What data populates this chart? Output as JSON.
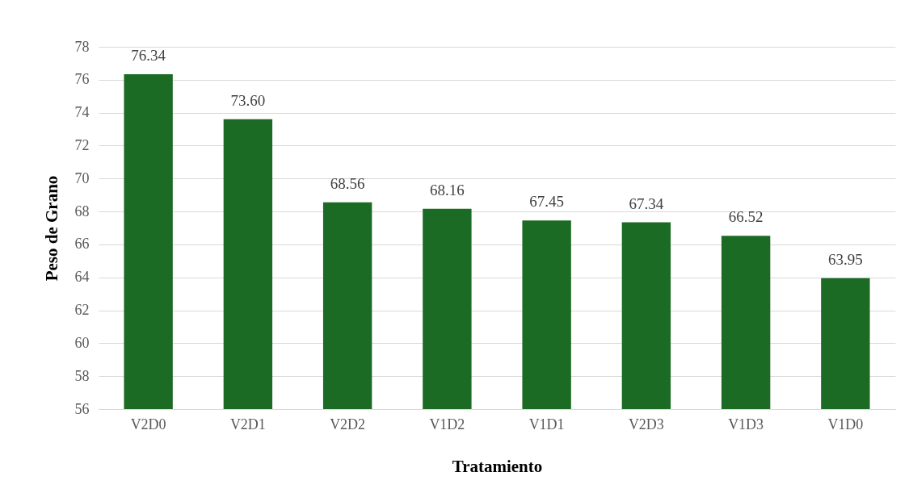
{
  "chart_data": {
    "type": "bar",
    "xlabel": "Tratamiento",
    "ylabel": "Peso de Grano",
    "categories": [
      "V2D0",
      "V2D1",
      "V2D2",
      "V1D2",
      "V1D1",
      "V2D3",
      "V1D3",
      "V1D0"
    ],
    "values": [
      76.34,
      73.6,
      68.56,
      68.16,
      67.45,
      67.34,
      66.52,
      63.95
    ],
    "value_labels": [
      "76.34",
      "73.60",
      "68.56",
      "68.16",
      "67.45",
      "67.34",
      "66.52",
      "63.95"
    ],
    "color": "#1b6b24",
    "ylim": [
      56,
      78
    ],
    "yticks": [
      56,
      58,
      60,
      62,
      64,
      66,
      68,
      70,
      72,
      74,
      76,
      78
    ],
    "grid": "y"
  }
}
